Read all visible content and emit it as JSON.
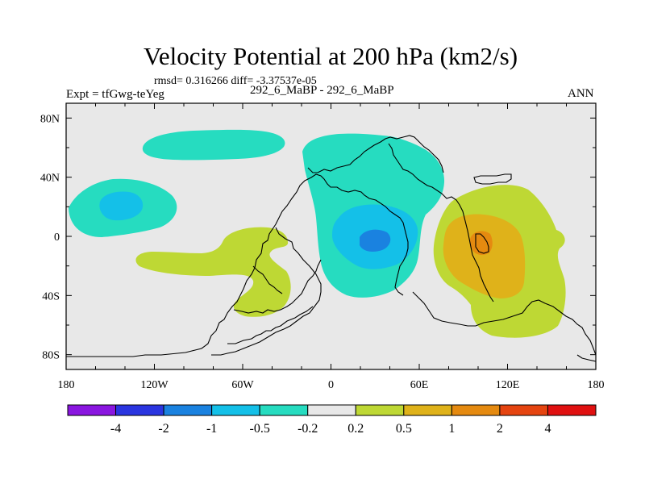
{
  "header": {
    "title": "Velocity Potential at 200 hPa (km2/s)",
    "stats": "rmsd= 0.316266 diff= -3.37537e-05",
    "expt": "Expt = tfGwg-teYeg",
    "case": "292_6_MaBP - 292_6_MaBP",
    "season": "ANN"
  },
  "chart_data": {
    "type": "heatmap",
    "title": "Velocity Potential at 200 hPa (km2/s)",
    "xlabel": "",
    "ylabel": "",
    "xlim": [
      -180,
      180
    ],
    "ylim": [
      -90,
      90
    ],
    "x_ticks": [
      {
        "value": -180,
        "label": "180"
      },
      {
        "value": -120,
        "label": "120W"
      },
      {
        "value": -60,
        "label": "60W"
      },
      {
        "value": 0,
        "label": "0"
      },
      {
        "value": 60,
        "label": "60E"
      },
      {
        "value": 120,
        "label": "120E"
      },
      {
        "value": 180,
        "label": "180"
      }
    ],
    "y_ticks": [
      {
        "value": 80,
        "label": "80N"
      },
      {
        "value": 40,
        "label": "40N"
      },
      {
        "value": 0,
        "label": "0"
      },
      {
        "value": -40,
        "label": "40S"
      },
      {
        "value": -80,
        "label": "80S"
      }
    ],
    "colorbar": {
      "bins": [
        {
          "color": "#8a16e0",
          "range": [
            null,
            -4
          ]
        },
        {
          "color": "#2a35e0",
          "range": [
            -4,
            -2
          ]
        },
        {
          "color": "#1a82e0",
          "range": [
            -2,
            -1
          ]
        },
        {
          "color": "#14c0e8",
          "range": [
            -1,
            -0.5
          ]
        },
        {
          "color": "#26dcc0",
          "range": [
            -0.5,
            -0.2
          ]
        },
        {
          "color": "#e8e8e8",
          "range": [
            -0.2,
            0.2
          ]
        },
        {
          "color": "#bed834",
          "range": [
            0.2,
            0.5
          ]
        },
        {
          "color": "#dfb21a",
          "range": [
            0.5,
            1
          ]
        },
        {
          "color": "#e58a10",
          "range": [
            1,
            2
          ]
        },
        {
          "color": "#e54410",
          "range": [
            2,
            4
          ]
        },
        {
          "color": "#e01010",
          "range": [
            4,
            null
          ]
        }
      ],
      "labels": [
        "-4",
        "-2",
        "-1",
        "-0.5",
        "-0.2",
        "0.2",
        "0.5",
        "1",
        "2",
        "4"
      ]
    },
    "features": [
      {
        "name": "north-pacific-negative",
        "level_range": [
          -0.5,
          -0.2
        ],
        "center": [
          -120,
          62
        ]
      },
      {
        "name": "east-pacific-negative",
        "level_range": [
          -0.5,
          -0.2
        ],
        "center": [
          -145,
          22
        ]
      },
      {
        "name": "east-pacific-core",
        "level_range": [
          -1,
          -0.5
        ],
        "center": [
          -147,
          22
        ]
      },
      {
        "name": "south-america-positive",
        "level_range": [
          0.2,
          0.5
        ],
        "center": [
          -55,
          -20
        ]
      },
      {
        "name": "africa-negative",
        "level_range": [
          -0.5,
          -0.2
        ],
        "center": [
          25,
          20
        ]
      },
      {
        "name": "africa-core",
        "level_range": [
          -1,
          -0.5
        ],
        "center": [
          28,
          0
        ]
      },
      {
        "name": "africa-inner-core",
        "level_range": [
          -2,
          -1
        ],
        "center": [
          32,
          0
        ]
      },
      {
        "name": "maritime-positive",
        "level_range": [
          0.2,
          0.5
        ],
        "center": [
          115,
          -10
        ]
      },
      {
        "name": "maritime-core",
        "level_range": [
          0.5,
          1
        ],
        "center": [
          110,
          0
        ]
      },
      {
        "name": "maritime-inner-core",
        "level_range": [
          1,
          2
        ],
        "center": [
          103,
          -3
        ]
      }
    ]
  }
}
